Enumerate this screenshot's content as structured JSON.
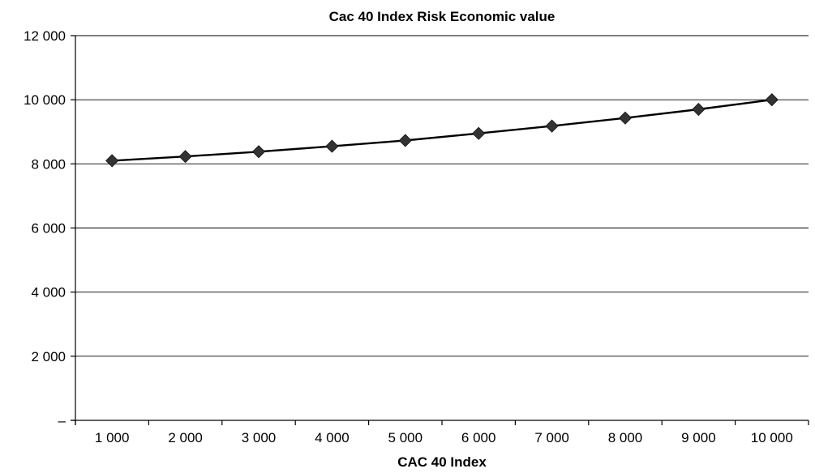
{
  "chart_data": {
    "type": "line",
    "title": "Cac 40 Index Risk Economic value",
    "xlabel": "CAC 40 Index",
    "ylabel": "",
    "x": [
      1000,
      2000,
      3000,
      4000,
      5000,
      6000,
      7000,
      8000,
      9000,
      10000
    ],
    "x_tick_labels": [
      "1 000",
      "2 000",
      "3 000",
      "4 000",
      "5 000",
      "6 000",
      "7 000",
      "8 000",
      "9 000",
      "10 000"
    ],
    "y_tick_values": [
      0,
      2000,
      4000,
      6000,
      8000,
      10000,
      12000
    ],
    "y_tick_labels": [
      "–",
      "2 000",
      "4 000",
      "6 000",
      "8 000",
      "10 000",
      "12 000"
    ],
    "ylim": [
      0,
      12000
    ],
    "grid": true,
    "series": [
      {
        "values": [
          8100,
          8230,
          8380,
          8550,
          8730,
          8950,
          9180,
          9430,
          9700,
          10000
        ],
        "color": "#000000",
        "marker": "diamond",
        "marker_color": "#333333"
      }
    ]
  }
}
